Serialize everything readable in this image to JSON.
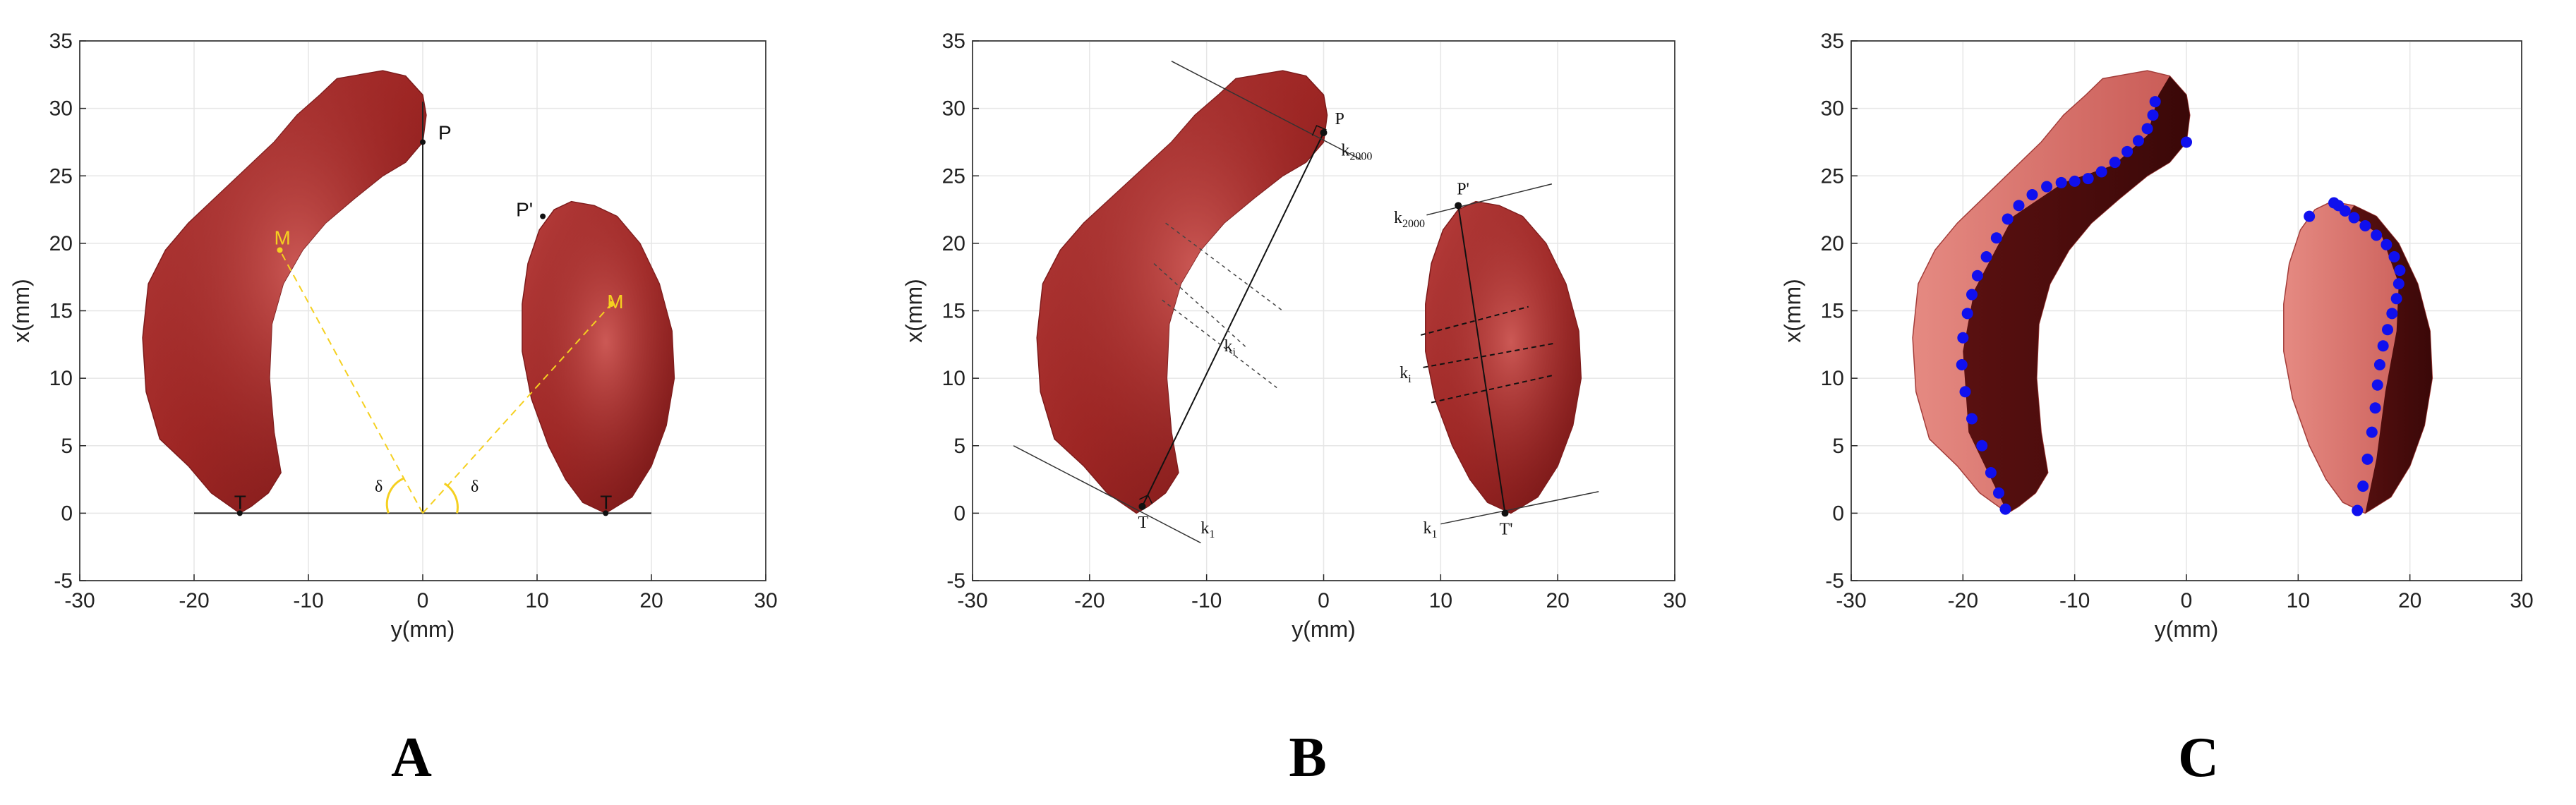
{
  "chart_data": [
    {
      "panel": "A",
      "type": "scatter",
      "xlabel": "y(mm)",
      "ylabel": "x(mm)",
      "xlim": [
        -30,
        30
      ],
      "ylim": [
        -5,
        35
      ],
      "xticks": [
        -30,
        -20,
        -10,
        0,
        10,
        20,
        30
      ],
      "yticks": [
        -5,
        0,
        5,
        10,
        15,
        20,
        25,
        30,
        35
      ],
      "grid": true,
      "points": [
        {
          "label": "P",
          "x": 0,
          "y": 27.5
        },
        {
          "label": "P'",
          "x": 10.5,
          "y": 22
        },
        {
          "label": "M",
          "x": -12.5,
          "y": 19.5
        },
        {
          "label": "M",
          "x": 16.5,
          "y": 15.5
        },
        {
          "label": "T",
          "x": -16,
          "y": 0
        },
        {
          "label": "T",
          "x": 16,
          "y": 0
        }
      ],
      "annotations": [
        "δ",
        "δ"
      ]
    },
    {
      "panel": "B",
      "type": "scatter",
      "xlabel": "y(mm)",
      "ylabel": "x(mm)",
      "xlim": [
        -30,
        30
      ],
      "ylim": [
        -5,
        35
      ],
      "xticks": [
        -30,
        -20,
        -10,
        0,
        10,
        20,
        30
      ],
      "yticks": [
        -5,
        0,
        5,
        10,
        15,
        20,
        25,
        30,
        35
      ],
      "grid": true,
      "points": [
        {
          "label": "P",
          "x": 0,
          "y": 28.2
        },
        {
          "label": "T",
          "x": -15.5,
          "y": 0.5
        },
        {
          "label": "P'",
          "x": 11.5,
          "y": 22.8
        },
        {
          "label": "T'",
          "x": 15.5,
          "y": 0
        }
      ],
      "annotations": [
        {
          "label": "k",
          "sub": "2000",
          "x": 1.5,
          "y": 26.5
        },
        {
          "label": "k",
          "sub": "i",
          "x": -8.5,
          "y": 12
        },
        {
          "label": "k",
          "sub": "1",
          "x": -10.5,
          "y": -1.5
        },
        {
          "label": "k",
          "sub": "2000",
          "x": 6,
          "y": 21.5
        },
        {
          "label": "k",
          "sub": "i",
          "x": 6.5,
          "y": 10
        },
        {
          "label": "k",
          "sub": "1",
          "x": 8.5,
          "y": -1.5
        }
      ]
    },
    {
      "panel": "C",
      "type": "scatter",
      "xlabel": "y(mm)",
      "ylabel": "x(mm)",
      "xlim": [
        -30,
        30
      ],
      "ylim": [
        -5,
        35
      ],
      "xticks": [
        -30,
        -20,
        -10,
        0,
        10,
        20,
        30
      ],
      "yticks": [
        -5,
        0,
        5,
        10,
        15,
        20,
        25,
        30,
        35
      ],
      "grid": true,
      "series": [
        {
          "color": "#1010ee",
          "x": [
            -16.2,
            -16.8,
            -17.5,
            -18.3,
            -19.2,
            -19.8,
            -20.1,
            -20.0,
            -19.6,
            -19.2,
            -18.7,
            -17.9,
            -17.0,
            -16.0,
            -15.0,
            -13.8,
            -12.5,
            -11.2,
            -10.0,
            -8.8,
            -7.6,
            -6.4,
            -5.3,
            -4.3,
            -3.5,
            -3.0,
            -2.8,
            0.0
          ],
          "y": [
            0.3,
            1.5,
            3.0,
            5.0,
            7.0,
            9.0,
            11.0,
            13.0,
            14.8,
            16.2,
            17.6,
            19.0,
            20.4,
            21.8,
            22.8,
            23.6,
            24.2,
            24.5,
            24.6,
            24.8,
            25.3,
            26.0,
            26.8,
            27.6,
            28.5,
            29.5,
            30.5,
            27.5
          ]
        },
        {
          "color": "#1010ee",
          "x": [
            15.3,
            15.8,
            16.2,
            16.6,
            16.9,
            17.1,
            17.3,
            17.6,
            18.0,
            18.4,
            18.8,
            19.0,
            19.1,
            18.6,
            17.9,
            17.0,
            16.0,
            15.0,
            14.2,
            13.6,
            13.2,
            11.0
          ],
          "y": [
            0.2,
            2.0,
            4.0,
            6.0,
            7.8,
            9.5,
            11.0,
            12.4,
            13.6,
            14.8,
            15.9,
            17.0,
            18.0,
            19.0,
            19.9,
            20.6,
            21.3,
            21.9,
            22.4,
            22.8,
            23.0,
            22.0
          ]
        }
      ]
    }
  ]
}
